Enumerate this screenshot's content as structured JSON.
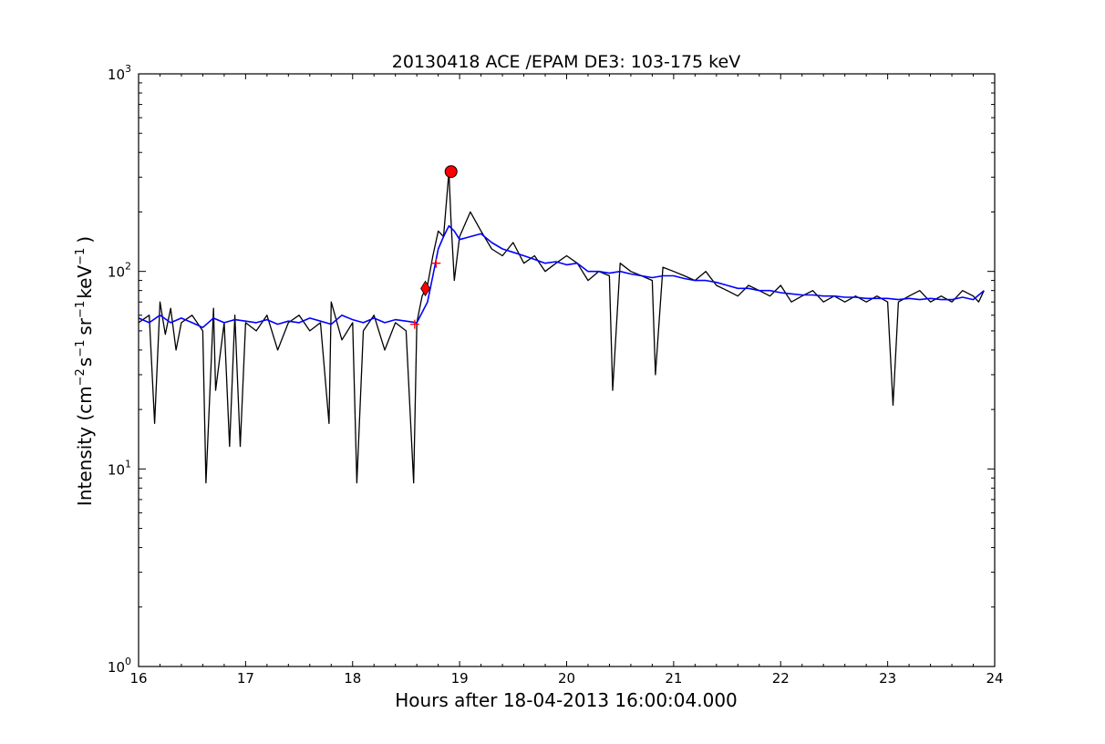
{
  "chart_data": {
    "type": "line",
    "title": "20130418 ACE /EPAM DE3: 103-175 keV",
    "xlabel": "Hours after 18-04-2013 16:00:04.000",
    "ylabel_parts": {
      "pre": "Intensity (cm",
      "sup1": "−2",
      "mid1": "s",
      "sup2": "−1",
      "mid2": "sr",
      "sup3": "−1",
      "mid3": "keV",
      "sup4": "−1",
      "post": ")"
    },
    "xlim": [
      16,
      24
    ],
    "ylim": [
      1,
      1000
    ],
    "yscale": "log",
    "x_ticks": [
      "16",
      "17",
      "18",
      "19",
      "20",
      "21",
      "22",
      "23",
      "24"
    ],
    "y_ticks": [
      {
        "base": "10",
        "exp": "0"
      },
      {
        "base": "10",
        "exp": "1"
      },
      {
        "base": "10",
        "exp": "2"
      },
      {
        "base": "10",
        "exp": "3"
      }
    ],
    "grid": false,
    "colors": {
      "raw": "#000000",
      "smoothed": "#0000ff",
      "markers": "#ff0000"
    },
    "series": [
      {
        "key": "raw",
        "style": "black line (raw 1-min intensity)",
        "x": [
          16.0,
          16.1,
          16.15,
          16.2,
          16.25,
          16.3,
          16.35,
          16.4,
          16.5,
          16.6,
          16.63,
          16.7,
          16.72,
          16.8,
          16.85,
          16.9,
          16.95,
          17.0,
          17.1,
          17.2,
          17.3,
          17.4,
          17.5,
          17.6,
          17.7,
          17.78,
          17.8,
          17.9,
          18.0,
          18.04,
          18.1,
          18.2,
          18.3,
          18.4,
          18.5,
          18.57,
          18.6,
          18.65,
          18.7,
          18.75,
          18.8,
          18.85,
          18.9,
          18.92,
          18.95,
          19.0,
          19.1,
          19.2,
          19.3,
          19.4,
          19.5,
          19.6,
          19.7,
          19.8,
          19.9,
          20.0,
          20.1,
          20.2,
          20.3,
          20.4,
          20.43,
          20.5,
          20.6,
          20.7,
          20.8,
          20.83,
          20.9,
          21.0,
          21.1,
          21.2,
          21.3,
          21.4,
          21.5,
          21.6,
          21.7,
          21.8,
          21.9,
          22.0,
          22.1,
          22.2,
          22.3,
          22.4,
          22.5,
          22.6,
          22.7,
          22.8,
          22.9,
          23.0,
          23.05,
          23.1,
          23.2,
          23.3,
          23.4,
          23.5,
          23.6,
          23.7,
          23.8,
          23.85,
          23.9
        ],
        "y": [
          55,
          60,
          17,
          70,
          48,
          65,
          40,
          55,
          60,
          50,
          8.5,
          65,
          25,
          55,
          13,
          60,
          13,
          55,
          50,
          60,
          40,
          55,
          60,
          50,
          55,
          17,
          70,
          45,
          55,
          8.5,
          50,
          60,
          40,
          55,
          50,
          8.5,
          55,
          75,
          85,
          120,
          160,
          150,
          320,
          180,
          90,
          150,
          200,
          160,
          130,
          120,
          140,
          110,
          120,
          100,
          110,
          120,
          110,
          90,
          100,
          95,
          25,
          110,
          100,
          95,
          90,
          30,
          105,
          100,
          95,
          90,
          100,
          85,
          80,
          75,
          85,
          80,
          75,
          85,
          70,
          75,
          80,
          70,
          75,
          70,
          75,
          70,
          75,
          70,
          21,
          70,
          75,
          80,
          70,
          75,
          70,
          80,
          75,
          70,
          80
        ]
      },
      {
        "key": "smoothed",
        "style": "blue line (running average)",
        "x": [
          16.0,
          16.1,
          16.2,
          16.3,
          16.4,
          16.5,
          16.6,
          16.7,
          16.8,
          16.9,
          17.0,
          17.1,
          17.2,
          17.3,
          17.4,
          17.5,
          17.6,
          17.7,
          17.8,
          17.9,
          18.0,
          18.1,
          18.2,
          18.3,
          18.4,
          18.5,
          18.6,
          18.7,
          18.75,
          18.8,
          18.85,
          18.9,
          18.95,
          19.0,
          19.1,
          19.2,
          19.3,
          19.4,
          19.5,
          19.6,
          19.7,
          19.8,
          19.9,
          20.0,
          20.1,
          20.2,
          20.3,
          20.4,
          20.5,
          20.6,
          20.7,
          20.8,
          20.9,
          21.0,
          21.1,
          21.2,
          21.3,
          21.4,
          21.5,
          21.6,
          21.7,
          21.8,
          21.9,
          22.0,
          22.1,
          22.2,
          22.3,
          22.4,
          22.5,
          22.6,
          22.7,
          22.8,
          22.9,
          23.0,
          23.1,
          23.2,
          23.3,
          23.4,
          23.5,
          23.6,
          23.7,
          23.8,
          23.9
        ],
        "y": [
          58,
          55,
          60,
          55,
          58,
          55,
          52,
          58,
          55,
          57,
          56,
          55,
          57,
          54,
          56,
          55,
          58,
          56,
          54,
          60,
          57,
          55,
          58,
          55,
          57,
          56,
          55,
          70,
          95,
          130,
          150,
          170,
          160,
          145,
          150,
          155,
          140,
          130,
          125,
          120,
          115,
          110,
          112,
          108,
          110,
          100,
          100,
          98,
          100,
          97,
          95,
          93,
          95,
          95,
          92,
          90,
          90,
          88,
          85,
          82,
          82,
          80,
          80,
          78,
          77,
          76,
          76,
          75,
          75,
          74,
          74,
          73,
          73,
          73,
          72,
          73,
          72,
          73,
          72,
          72,
          74,
          72,
          80
        ]
      }
    ],
    "markers": [
      {
        "name": "onset-plus-1",
        "shape": "plus",
        "x": 18.58,
        "y": 54
      },
      {
        "name": "onset-diamond",
        "shape": "diamond",
        "x": 18.68,
        "y": 82
      },
      {
        "name": "onset-plus-2",
        "shape": "plus",
        "x": 18.78,
        "y": 110
      },
      {
        "name": "peak-circle",
        "shape": "circle",
        "x": 18.92,
        "y": 320
      }
    ]
  }
}
